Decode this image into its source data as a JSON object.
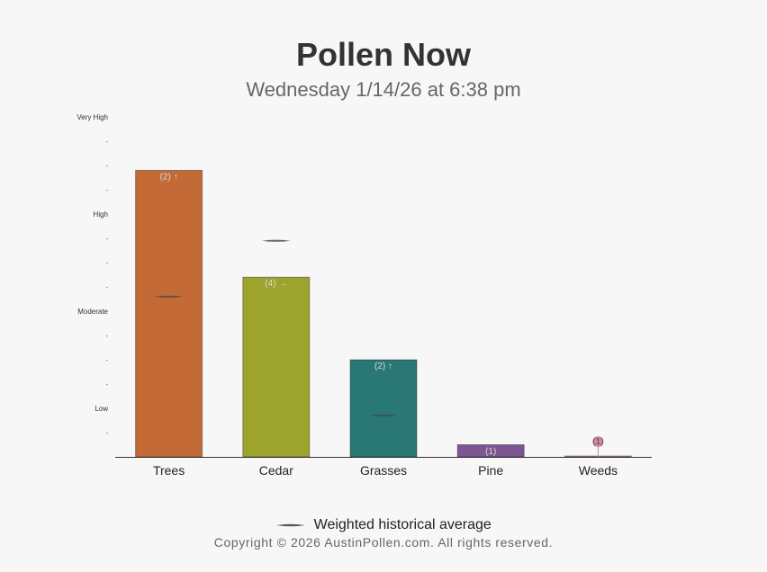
{
  "header": {
    "title": "Pollen Now",
    "subtitle": "Wednesday 1/14/26 at 6:38 pm"
  },
  "legend": {
    "label": "Weighted historical average"
  },
  "footer": {
    "copyright": "Copyright © 2026 AustinPollen.com.  All rights reserved."
  },
  "chart_data": {
    "type": "bar",
    "title": "Pollen Now",
    "subtitle": "Wednesday 1/14/26 at 6:38 pm",
    "categories": [
      "Trees",
      "Cedar",
      "Grasses",
      "Pine",
      "Weeds"
    ],
    "values": [
      11.8,
      7.4,
      4.0,
      0.5,
      0.02
    ],
    "bar_labels": [
      "(2) ↑",
      "(4) →",
      "(2) ↑",
      "(1)",
      "(1)"
    ],
    "historical_average": [
      6.6,
      8.9,
      1.7,
      null,
      null
    ],
    "bar_colors": [
      "#c36a37",
      "#9ca42d",
      "#2a7876",
      "#7c5591",
      "#c98fa6"
    ],
    "y_scale": {
      "min": 0,
      "max": 13,
      "gridlines": false
    },
    "y_ticks": [
      {
        "value": 1,
        "label": "-"
      },
      {
        "value": 2,
        "label": "Low"
      },
      {
        "value": 3,
        "label": "-"
      },
      {
        "value": 4,
        "label": "-"
      },
      {
        "value": 5,
        "label": "-"
      },
      {
        "value": 6,
        "label": "Moderate"
      },
      {
        "value": 7,
        "label": "-"
      },
      {
        "value": 8,
        "label": "-"
      },
      {
        "value": 9,
        "label": "-"
      },
      {
        "value": 10,
        "label": "High"
      },
      {
        "value": 11,
        "label": "-"
      },
      {
        "value": 12,
        "label": "-"
      },
      {
        "value": 13,
        "label": "-"
      },
      {
        "value": 14,
        "label": "Very High"
      }
    ],
    "legend_position": "bottom",
    "legend": [
      "Weighted historical average"
    ]
  }
}
